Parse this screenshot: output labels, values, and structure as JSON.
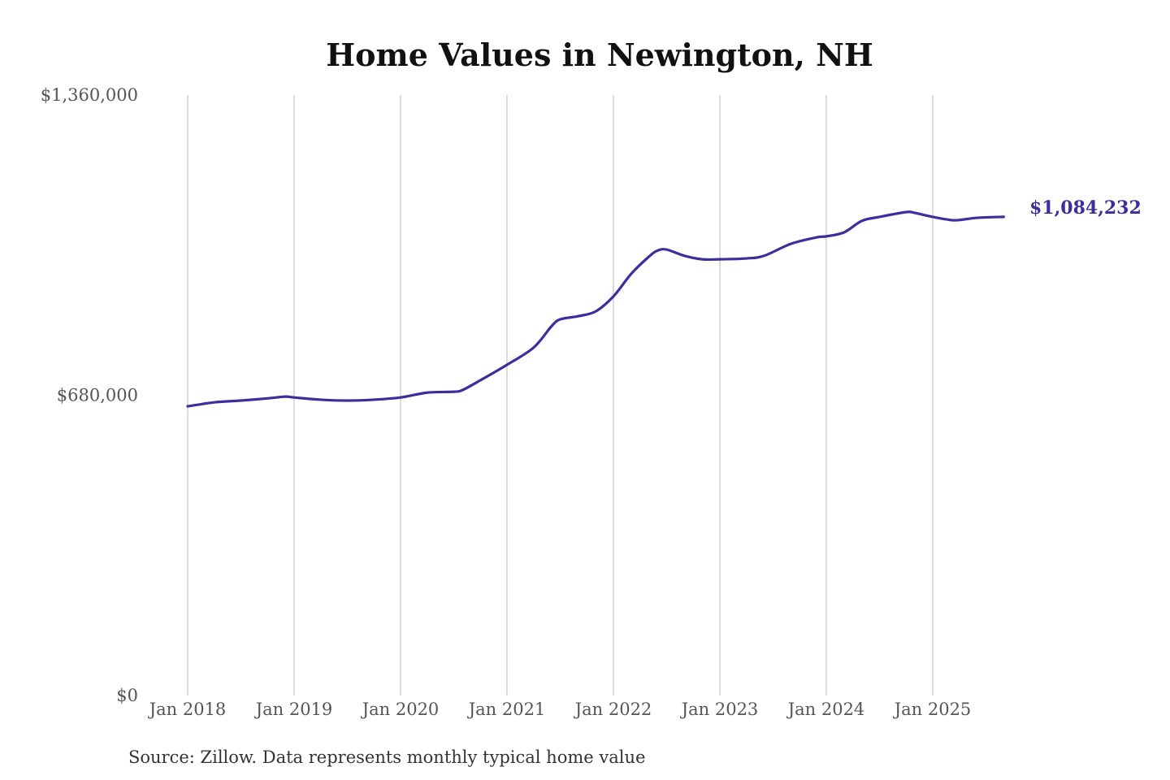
{
  "chart_data": {
    "type": "line",
    "title": "Home Values in Newington, NH",
    "source": "Source: Zillow. Data represents monthly typical home value",
    "xlabel": "",
    "ylabel": "",
    "ylim": [
      0,
      1360000
    ],
    "y_ticks": [
      {
        "value": 0,
        "label": "$0"
      },
      {
        "value": 680000,
        "label": "$680,000"
      },
      {
        "value": 1360000,
        "label": "$1,360,000"
      }
    ],
    "x_ticks": [
      {
        "value": "2018-01",
        "label": "Jan 2018"
      },
      {
        "value": "2019-01",
        "label": "Jan 2019"
      },
      {
        "value": "2020-01",
        "label": "Jan 2020"
      },
      {
        "value": "2021-01",
        "label": "Jan 2021"
      },
      {
        "value": "2022-01",
        "label": "Jan 2022"
      },
      {
        "value": "2023-01",
        "label": "Jan 2023"
      },
      {
        "value": "2024-01",
        "label": "Jan 2024"
      },
      {
        "value": "2025-01",
        "label": "Jan 2025"
      }
    ],
    "grid": "vertical",
    "line_color": "#3b2f9e",
    "end_label": "$1,084,232",
    "series": [
      {
        "x": [
          "2018-01",
          "2018-04",
          "2018-07",
          "2018-10",
          "2018-12",
          "2019-01",
          "2019-04",
          "2019-07",
          "2019-10",
          "2020-01",
          "2020-04",
          "2020-07",
          "2020-08",
          "2020-10",
          "2021-01",
          "2021-04",
          "2021-06",
          "2021-07",
          "2021-09",
          "2021-11",
          "2022-01",
          "2022-03",
          "2022-05",
          "2022-06",
          "2022-07",
          "2022-09",
          "2022-11",
          "2023-01",
          "2023-04",
          "2023-06",
          "2023-09",
          "2023-12",
          "2024-01",
          "2024-03",
          "2024-05",
          "2024-07",
          "2024-10",
          "2024-11",
          "2025-01",
          "2025-03",
          "2025-04",
          "2025-06",
          "2025-09"
        ],
        "y": [
          655000,
          664000,
          668000,
          673000,
          677000,
          675000,
          670000,
          668000,
          670000,
          675000,
          686000,
          688000,
          692000,
          714000,
          749000,
          788000,
          836000,
          852000,
          859000,
          870000,
          904000,
          955000,
          994000,
          1008000,
          1010000,
          996000,
          988000,
          988000,
          990000,
          996000,
          1023000,
          1038000,
          1040000,
          1049000,
          1075000,
          1084000,
          1095000,
          1093000,
          1084000,
          1077000,
          1077000,
          1082000,
          1084232
        ]
      }
    ]
  }
}
